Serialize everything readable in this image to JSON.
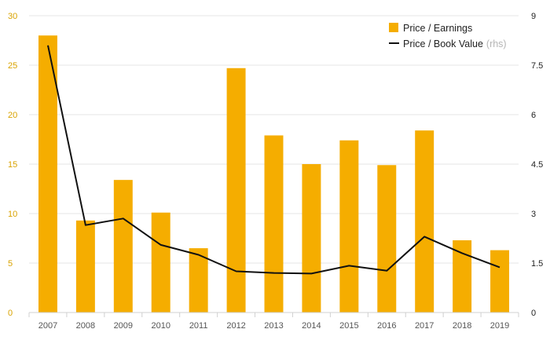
{
  "chart_data": {
    "type": "bar+line",
    "categories": [
      "2007",
      "2008",
      "2009",
      "2010",
      "2011",
      "2012",
      "2013",
      "2014",
      "2015",
      "2016",
      "2017",
      "2018",
      "2019"
    ],
    "series": [
      {
        "name": "Price / Earnings",
        "type": "bar",
        "axis": "left",
        "color": "#f5ad00",
        "values": [
          28.0,
          9.3,
          13.4,
          10.1,
          6.5,
          24.7,
          17.9,
          15.0,
          17.4,
          14.9,
          18.4,
          7.3,
          6.3
        ]
      },
      {
        "name": "Price / Book Value",
        "type": "line",
        "axis": "right",
        "color": "#111111",
        "values": [
          8.1,
          2.65,
          2.85,
          2.05,
          1.75,
          1.25,
          1.2,
          1.18,
          1.42,
          1.27,
          2.3,
          1.8,
          1.37
        ]
      }
    ],
    "legend": {
      "position": "top-right",
      "items": [
        {
          "label": "Price / Earnings",
          "suffix": ""
        },
        {
          "label": "Price / Book Value",
          "suffix": "(rhs)"
        }
      ]
    },
    "y_left": {
      "min": 0,
      "max": 30,
      "ticks": [
        "0",
        "5",
        "10",
        "15",
        "20",
        "25",
        "30"
      ]
    },
    "y_right": {
      "min": 0,
      "max": 9,
      "ticks": [
        "0",
        "1.5",
        "3",
        "4.5",
        "6",
        "7.5",
        "9"
      ]
    },
    "grid": true
  }
}
